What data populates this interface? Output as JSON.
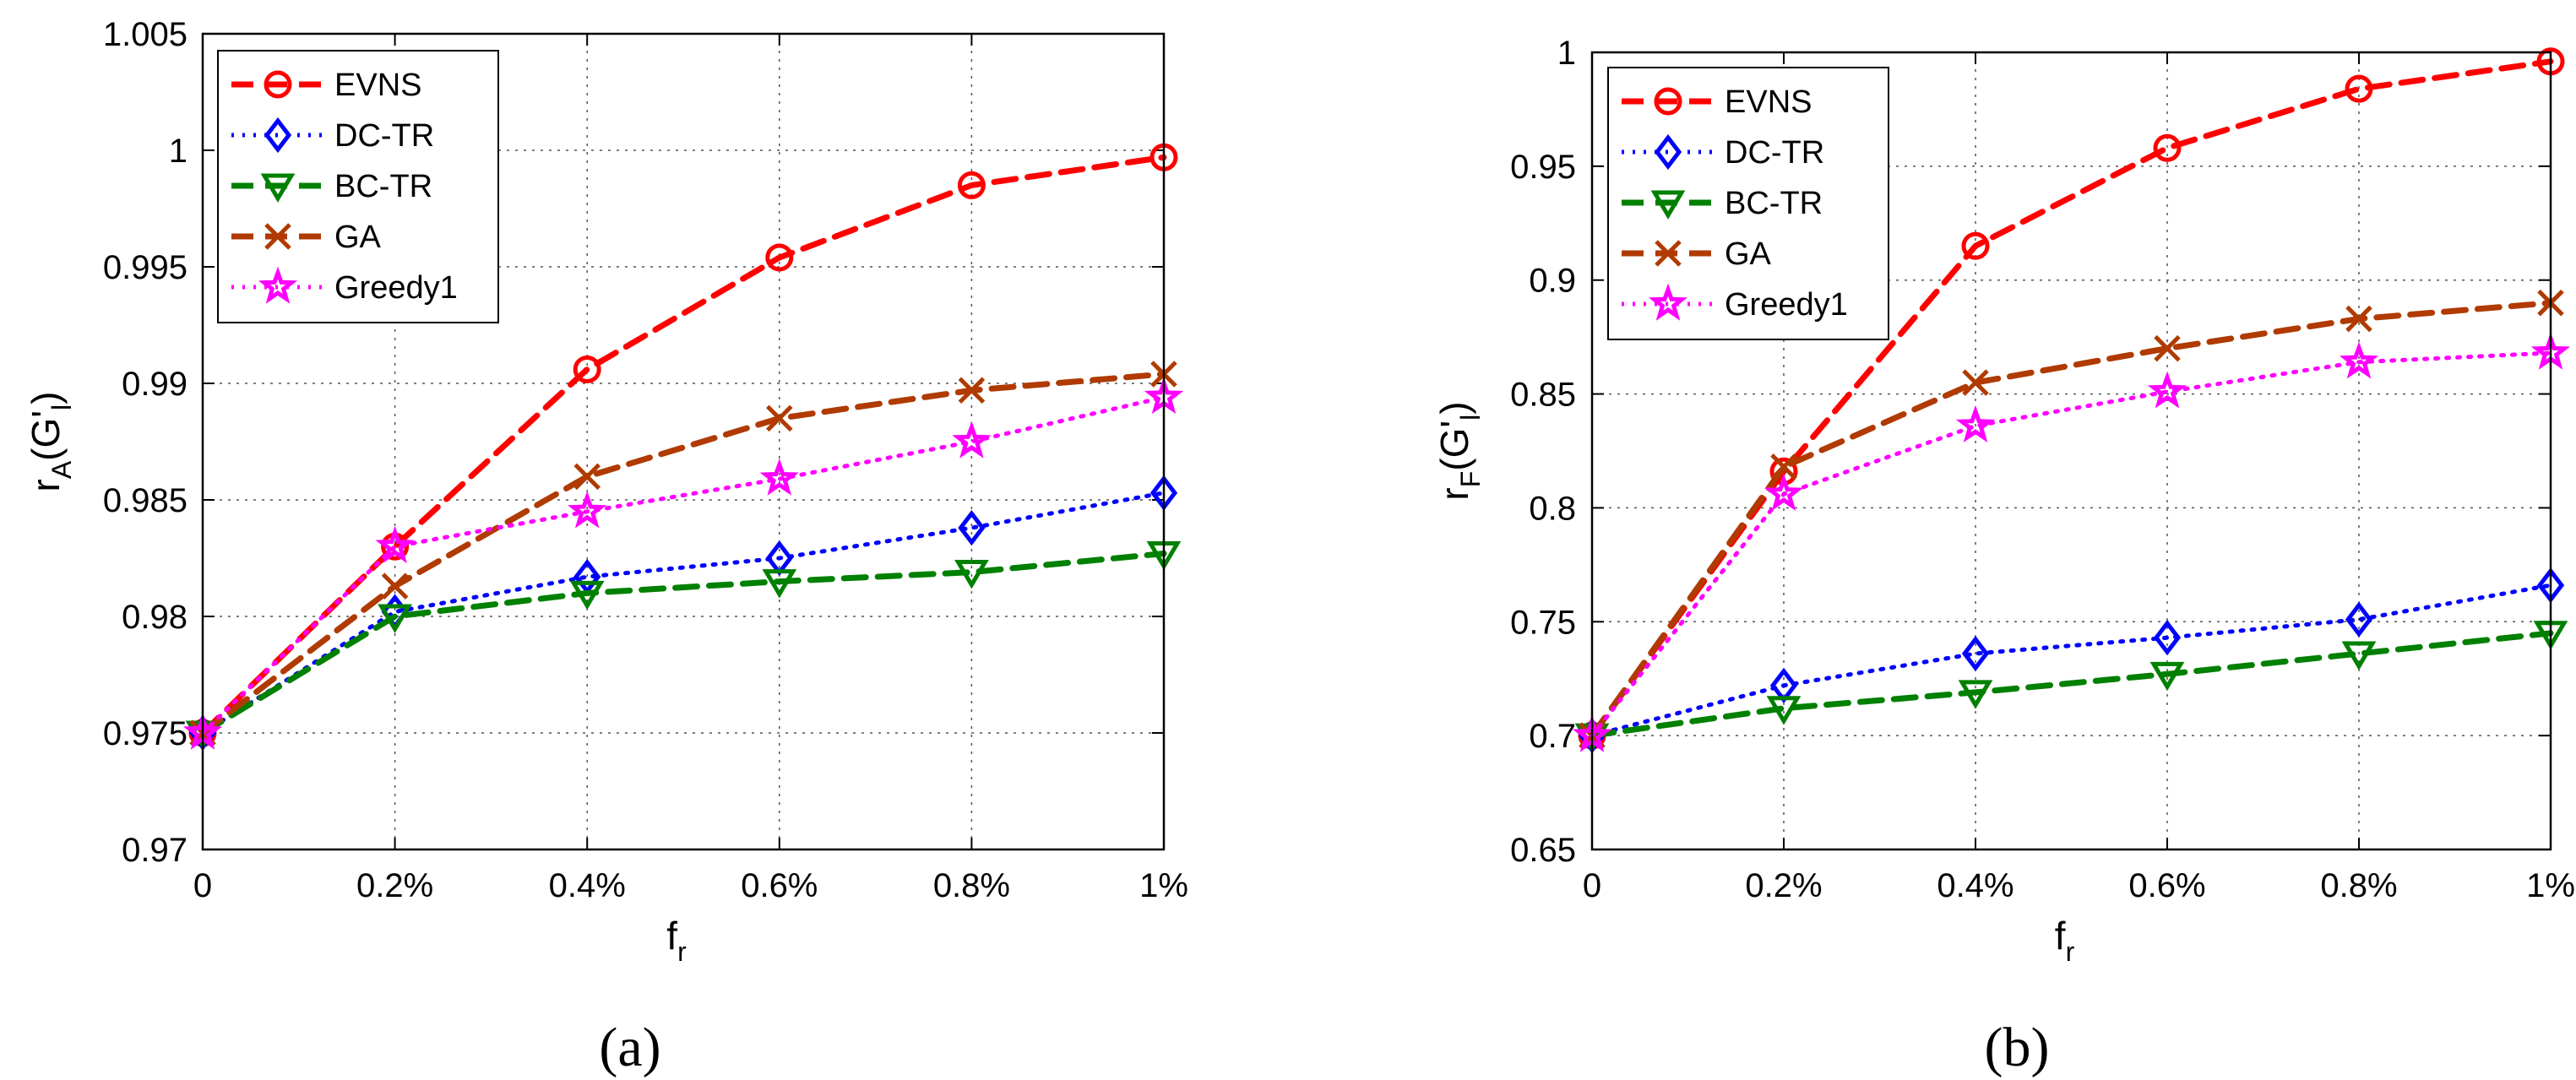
{
  "panels": [
    {
      "label": "(a)",
      "chart_data": {
        "type": "line",
        "x": [
          "0",
          "0.2%",
          "0.4%",
          "0.6%",
          "0.8%",
          "1%"
        ],
        "xlabel_main": "f",
        "xlabel_sub": "r",
        "ylabel_main": "r",
        "ylabel_sub": "A",
        "ylabel_paren": "(G'",
        "ylabel_paren_sub": "l",
        "ylabel_close": ")",
        "ylim": [
          0.97,
          1.005
        ],
        "yticks": [
          0.97,
          0.975,
          0.98,
          0.985,
          0.99,
          0.995,
          1,
          1.005
        ],
        "ytick_labels": [
          "0.97",
          "0.975",
          "0.98",
          "0.985",
          "0.99",
          "0.995",
          "1",
          "1.005"
        ],
        "grid": true,
        "legend_position": "top-left",
        "series": [
          {
            "name": "EVNS",
            "values": [
              0.975,
              0.983,
              0.9906,
              0.9954,
              0.9985,
              0.9997
            ],
            "color": "#ff0000",
            "marker": "circle",
            "dash": "dashed"
          },
          {
            "name": "DC-TR",
            "values": [
              0.975,
              0.9802,
              0.9817,
              0.9825,
              0.9838,
              0.9853
            ],
            "color": "#0000ff",
            "marker": "diamond",
            "dash": "dotted"
          },
          {
            "name": "BC-TR",
            "values": [
              0.975,
              0.98,
              0.981,
              0.9815,
              0.9819,
              0.9827
            ],
            "color": "#008000",
            "marker": "triangle-down",
            "dash": "dashed"
          },
          {
            "name": "GA",
            "values": [
              0.975,
              0.9813,
              0.986,
              0.9885,
              0.9897,
              0.9904
            ],
            "color": "#b03a00",
            "marker": "cross",
            "dash": "dashed"
          },
          {
            "name": "Greedy1",
            "values": [
              0.975,
              0.983,
              0.9845,
              0.9859,
              0.9875,
              0.9894
            ],
            "color": "#ff00ff",
            "marker": "star",
            "dash": "dotted"
          }
        ]
      }
    },
    {
      "label": "(b)",
      "chart_data": {
        "type": "line",
        "x": [
          "0",
          "0.2%",
          "0.4%",
          "0.6%",
          "0.8%",
          "1%"
        ],
        "xlabel_main": "f",
        "xlabel_sub": "r",
        "ylabel_main": "r",
        "ylabel_sub": "F",
        "ylabel_paren": "(G'",
        "ylabel_paren_sub": "l",
        "ylabel_close": ")",
        "ylim": [
          0.65,
          1
        ],
        "yticks": [
          0.65,
          0.7,
          0.75,
          0.8,
          0.85,
          0.9,
          0.95,
          1
        ],
        "ytick_labels": [
          "0.65",
          "0.7",
          "0.75",
          "0.8",
          "0.85",
          "0.9",
          "0.95",
          "1"
        ],
        "grid": true,
        "legend_position": "top-left",
        "series": [
          {
            "name": "EVNS",
            "values": [
              0.7,
              0.816,
              0.915,
              0.958,
              0.984,
              0.996
            ],
            "color": "#ff0000",
            "marker": "circle",
            "dash": "dashed"
          },
          {
            "name": "DC-TR",
            "values": [
              0.7,
              0.722,
              0.736,
              0.743,
              0.751,
              0.766
            ],
            "color": "#0000ff",
            "marker": "diamond",
            "dash": "dotted"
          },
          {
            "name": "BC-TR",
            "values": [
              0.7,
              0.712,
              0.719,
              0.727,
              0.736,
              0.745
            ],
            "color": "#008000",
            "marker": "triangle-down",
            "dash": "dashed"
          },
          {
            "name": "GA",
            "values": [
              0.7,
              0.818,
              0.855,
              0.87,
              0.883,
              0.89
            ],
            "color": "#b03a00",
            "marker": "cross",
            "dash": "dashed"
          },
          {
            "name": "Greedy1",
            "values": [
              0.7,
              0.806,
              0.836,
              0.851,
              0.864,
              0.868
            ],
            "color": "#ff00ff",
            "marker": "star",
            "dash": "dotted"
          }
        ]
      }
    }
  ]
}
